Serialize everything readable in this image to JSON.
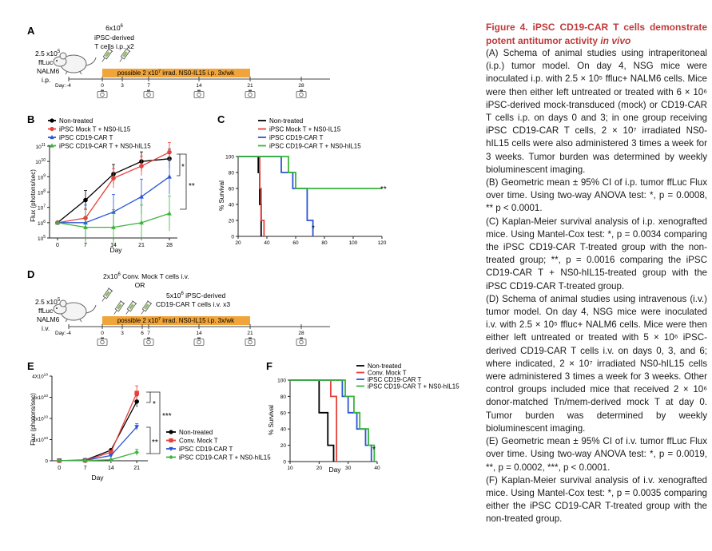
{
  "panels": {
    "A": {
      "letter": "A",
      "cell_dose_top": "6x10",
      "cell_dose_top_exp": "6",
      "cells_line1": "iPSC-derived",
      "cells_line2": "T cells i.p. x2",
      "tumor_line1": "2.5 x10",
      "tumor_exp": "5",
      "tumor_line2": "ffLuc+",
      "tumor_line3": "NALM6",
      "tumor_line4": "i.p.",
      "bar_text_a": "possible 2 x10",
      "bar_exp": "7",
      "bar_text_b": " irrad. NS0-IL15 i.p. 3x/wk",
      "day_label": "Day:",
      "days": [
        "-4",
        "0",
        "3",
        "7",
        "14",
        "21",
        "28"
      ]
    },
    "B": {
      "letter": "B",
      "ylabel": "Flux (photons/sec)",
      "xlabel": "Day",
      "yticks": [
        "10",
        "10",
        "10",
        "10",
        "10",
        "10",
        "10"
      ],
      "ytick_exps": [
        "11",
        "10",
        "9",
        "8",
        "7",
        "6",
        "5"
      ],
      "xticks": [
        "0",
        "7",
        "14",
        "21",
        "28"
      ],
      "sig1": "*",
      "sig2": "**"
    },
    "C": {
      "letter": "C",
      "ylabel": "% Survival",
      "xticks": [
        "20",
        "40",
        "60",
        "80",
        "100",
        "120"
      ],
      "yticks": [
        "0",
        "20",
        "40",
        "60",
        "80",
        "100"
      ],
      "sig1": "*",
      "sig2": "**"
    },
    "D": {
      "letter": "D",
      "line1": "2x10",
      "line1_exp": "6",
      "line1b": " Conv. Mock T cells i.v.",
      "or": "OR",
      "car_line1a": "5x10",
      "car_exp": "6",
      "car_line1b": " iPSC-derived",
      "car_line2": "CD19-CAR T cells i.v. x3",
      "tumor_line1": "2.5 x10",
      "tumor_exp": "5",
      "tumor_line2": "ffLuc+",
      "tumor_line3": "NALM6",
      "tumor_line4": "i.v.",
      "bar_text_a": "possible 2 x10",
      "bar_exp": "7",
      "bar_text_b": " irrad. NS0-IL15 i.p. 3x/wk",
      "day_label": "Day:",
      "days": [
        "-4",
        "0",
        "3",
        "6",
        "7",
        "14",
        "21",
        "28"
      ]
    },
    "E": {
      "letter": "E",
      "ylabel": "Flux (photons/sec)",
      "xlabel": "Day",
      "yticks": [
        "4X10",
        "3x10",
        "2x10",
        "1x10",
        "0"
      ],
      "ytick_exps": [
        "10",
        "10",
        "10",
        "10",
        ""
      ],
      "xticks": [
        "0",
        "7",
        "14",
        "21"
      ],
      "sig1": "*",
      "sig2": "***",
      "sig3": "**"
    },
    "F": {
      "letter": "F",
      "ylabel": "% Survival",
      "xlabel": "Day",
      "xticks": [
        "10",
        "20",
        "30",
        "40"
      ],
      "yticks": [
        "0",
        "20",
        "40",
        "60",
        "80",
        "100"
      ],
      "sig1": "*"
    }
  },
  "legend_BC": [
    {
      "label": "Non-treated",
      "color": "#000000",
      "marker": "circle"
    },
    {
      "label": "iPSC Mock T + NS0-IL15",
      "color": "#e8403a",
      "marker": "circle"
    },
    {
      "label": "iPSC CD19-CAR T",
      "color": "#2a55d6",
      "marker": "triangle"
    },
    {
      "label": "iPSC CD19-CAR T + NS0-hIL15",
      "color": "#3ab43a",
      "marker": "triangle"
    }
  ],
  "legend_C": [
    {
      "label": "Non-treated",
      "color": "#000000"
    },
    {
      "label": "iPSC Mock T + NS0-IL15",
      "color": "#e8403a"
    },
    {
      "label": "iPSC CD19-CAR T",
      "color": "#2a55d6"
    },
    {
      "label": "iPSC CD19-CAR T + NS0-hIL15",
      "color": "#3ab43a"
    }
  ],
  "legend_E": [
    {
      "label": "Non-treated",
      "color": "#000000",
      "marker": "circle"
    },
    {
      "label": "Conv. Mock T",
      "color": "#e8403a",
      "marker": "square"
    },
    {
      "label": "iPSC CD19-CAR T",
      "color": "#2a55d6",
      "marker": "tri-down"
    },
    {
      "label": "iPSC CD19-CAR T + NS0-hIL15",
      "color": "#3ab43a",
      "marker": "diamond"
    }
  ],
  "legend_F": [
    {
      "label": "Non-treated",
      "color": "#000000"
    },
    {
      "label": "Conv. Mock T",
      "color": "#e8403a"
    },
    {
      "label": "iPSC CD19-CAR T",
      "color": "#2a55d6"
    },
    {
      "label": "iPSC CD19-CAR T + NS0-hIL15",
      "color": "#3ab43a"
    }
  ],
  "chart_data": [
    {
      "id": "B",
      "type": "line",
      "title": "",
      "xlabel": "Day",
      "ylabel": "Flux (photons/sec)",
      "yscale": "log",
      "ylim": [
        100000,
        100000000000
      ],
      "xlim": [
        -2,
        30
      ],
      "x": [
        0,
        7,
        14,
        21,
        28
      ],
      "series": [
        {
          "name": "Non-treated",
          "values": [
            1000000,
            30000000,
            1500000000,
            10000000000,
            15000000000
          ]
        },
        {
          "name": "iPSC Mock T + NS0-IL15",
          "values": [
            1000000,
            2000000,
            800000000,
            5000000000,
            40000000000
          ]
        },
        {
          "name": "iPSC CD19-CAR T",
          "values": [
            1000000,
            1000000,
            5000000,
            50000000,
            1000000000
          ]
        },
        {
          "name": "iPSC CD19-CAR T + NS0-hIL15",
          "values": [
            1000000,
            500000,
            500000,
            1000000,
            4000000
          ]
        }
      ]
    },
    {
      "id": "C",
      "type": "line",
      "title": "",
      "xlabel": "",
      "ylabel": "% Survival",
      "xlim": [
        20,
        120
      ],
      "ylim": [
        0,
        100
      ],
      "series": [
        {
          "name": "Non-treated",
          "x": [
            20,
            34,
            34,
            35,
            35,
            36,
            36
          ],
          "values": [
            100,
            100,
            80,
            80,
            40,
            40,
            0
          ]
        },
        {
          "name": "iPSC Mock T + NS0-IL15",
          "x": [
            20,
            35,
            35,
            36,
            36,
            38,
            38
          ],
          "values": [
            100,
            100,
            60,
            60,
            20,
            20,
            0
          ]
        },
        {
          "name": "iPSC CD19-CAR T",
          "x": [
            20,
            50,
            50,
            58,
            58,
            68,
            68,
            72,
            72
          ],
          "values": [
            100,
            100,
            80,
            80,
            60,
            60,
            20,
            20,
            0
          ]
        },
        {
          "name": "iPSC CD19-CAR T + NS0-hIL15",
          "x": [
            20,
            55,
            55,
            60,
            60,
            120
          ],
          "values": [
            100,
            100,
            80,
            80,
            60,
            60
          ]
        }
      ]
    },
    {
      "id": "E",
      "type": "line",
      "title": "",
      "xlabel": "Day",
      "ylabel": "Flux (photons/sec)",
      "ylim": [
        0,
        40000000000
      ],
      "xlim": [
        -2,
        24
      ],
      "x": [
        0,
        7,
        14,
        21
      ],
      "series": [
        {
          "name": "Non-treated",
          "values": [
            100000000,
            300000000,
            5000000000,
            28000000000
          ]
        },
        {
          "name": "Conv. Mock T",
          "values": [
            100000000,
            200000000,
            4000000000,
            32000000000
          ]
        },
        {
          "name": "iPSC CD19-CAR T",
          "values": [
            100000000,
            150000000,
            2500000000,
            16000000000
          ]
        },
        {
          "name": "iPSC CD19-CAR T + NS0-hIL15",
          "values": [
            100000000,
            100000000,
            500000000,
            4000000000
          ]
        }
      ]
    },
    {
      "id": "F",
      "type": "line",
      "title": "",
      "xlabel": "Day",
      "ylabel": "% Survival",
      "xlim": [
        10,
        40
      ],
      "ylim": [
        0,
        100
      ],
      "series": [
        {
          "name": "Non-treated",
          "x": [
            10,
            20,
            20,
            23,
            23,
            25,
            25
          ],
          "values": [
            100,
            100,
            60,
            60,
            20,
            20,
            0
          ]
        },
        {
          "name": "Conv. Mock T",
          "x": [
            10,
            24,
            24,
            26,
            26
          ],
          "values": [
            100,
            100,
            80,
            80,
            0
          ]
        },
        {
          "name": "iPSC CD19-CAR T",
          "x": [
            10,
            28,
            28,
            30,
            30,
            33,
            33,
            36,
            36,
            38,
            38
          ],
          "values": [
            100,
            100,
            80,
            80,
            60,
            60,
            40,
            40,
            20,
            20,
            0
          ]
        },
        {
          "name": "iPSC CD19-CAR T + NS0-hIL15",
          "x": [
            10,
            29,
            29,
            32,
            32,
            34,
            34,
            37,
            37,
            39,
            39
          ],
          "values": [
            100,
            100,
            80,
            80,
            60,
            60,
            40,
            40,
            20,
            20,
            0
          ]
        }
      ]
    }
  ],
  "caption": {
    "title_a": "Figure 4. iPSC CD19-CAR T cells demonstrate potent antitumor activity ",
    "title_b": "in vivo",
    "paragraphs": [
      "(A) Schema of animal studies using intraperitoneal (i.p.) tumor model. On day 4, NSG mice were inoculated i.p. with 2.5 × 10⁵ ffluc+ NALM6 cells. Mice were then either left untreated or treated with 6 × 10⁶ iPSC-derived mock-transduced (mock) or CD19-CAR T cells i.p. on days 0 and 3; in one group receiving iPSC CD19-CAR T cells, 2 × 10⁷ irradiated NS0-hIL15 cells were also administered 3 times a week for 3 weeks. Tumor burden was determined by weekly bioluminescent imaging.",
      "(B) Geometric mean ± 95% CI of i.p. tumor ffLuc Flux over time. Using two-way ANOVA test: *, p = 0.0008, ** p < 0.0001.",
      "(C) Kaplan-Meier survival analysis of i.p. xenografted mice. Using Mantel-Cox test: *, p = 0.0034 comparing the iPSC CD19-CAR T-treated group with the non-treated group; **, p = 0.0016 comparing the iPSC CD19-CAR T + NS0-hIL15-treated group with the iPSC CD19-CAR T-treated group.",
      "(D) Schema of animal studies using intravenous (i.v.) tumor model. On day 4, NSG mice were inoculated i.v. with 2.5 × 10⁵ ffluc+ NALM6 cells. Mice were then either left untreated or treated with 5 × 10⁶ iPSC-derived CD19-CAR T cells i.v. on days 0, 3, and 6; where indicated, 2 × 10⁷ irradiated NS0-hIL15 cells were administered 3 times a week for 3 weeks. Other control groups included mice that received 2 × 10⁶ donor-matched Tn/mem-derived mock T at day 0. Tumor burden was determined by weekly bioluminescent imaging.",
      "(E) Geometric mean ± 95% CI of i.v. tumor ffLuc Flux over time. Using two-way ANOVA test: *, p = 0.0019, **, p = 0.0002, ***, p < 0.0001.",
      "(F) Kaplan-Meier survival analysis of i.v. xenografted mice. Using Mantel-Cox test: *, p = 0.0035 comparing either the iPSC CD19-CAR T-treated group with the non-treated group."
    ]
  }
}
